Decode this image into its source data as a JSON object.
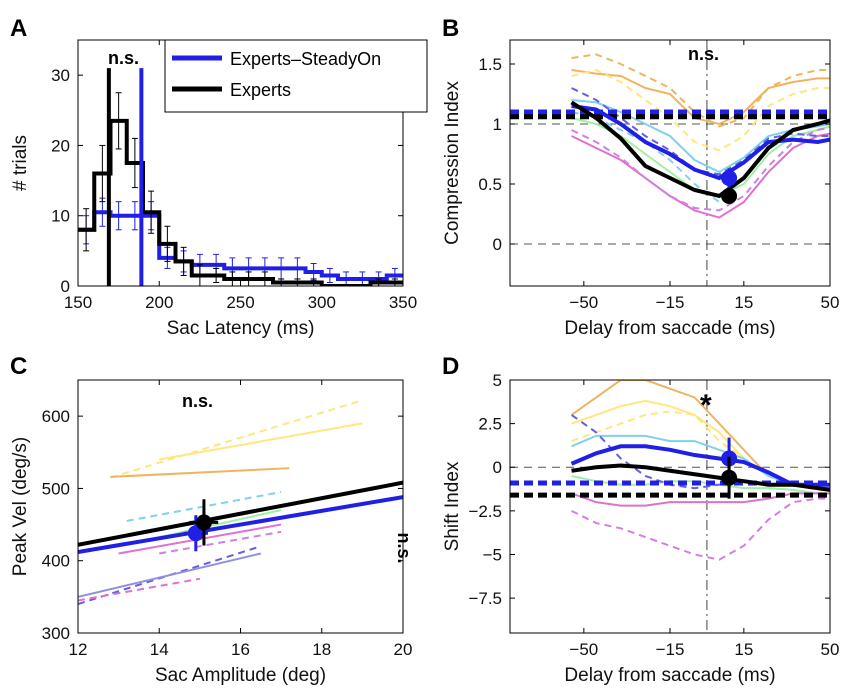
{
  "colors": {
    "blue": "#1f1fe6",
    "black": "#000000",
    "grey": "#666666"
  },
  "legend": {
    "steadyon": "Experts–SteadyOn",
    "experts": "Experts"
  },
  "panels": {
    "A": {
      "letter": "A",
      "annotation": "n.s."
    },
    "B": {
      "letter": "B",
      "annotation": "n.s."
    },
    "C": {
      "letter": "C",
      "annotation_top": "n.s.",
      "annotation_right": "n.s."
    },
    "D": {
      "letter": "D",
      "annotation": "*"
    }
  },
  "chart_data": [
    {
      "id": "A",
      "type": "line",
      "title": "",
      "xlabel": "Sac Latency (ms)",
      "ylabel": "# trials",
      "xlim": [
        150,
        350
      ],
      "ylim": [
        0,
        35
      ],
      "xticks": [
        150,
        200,
        250,
        300,
        350
      ],
      "yticks": [
        0,
        10,
        20,
        30
      ],
      "series": [
        {
          "name": "Experts–SteadyOn",
          "color": "#1f1fe6",
          "style": "step",
          "x": [
            150,
            160,
            170,
            180,
            190,
            200,
            210,
            220,
            230,
            240,
            250,
            260,
            270,
            280,
            290,
            300,
            310,
            320,
            330,
            340,
            350
          ],
          "y": [
            8,
            10.5,
            10,
            10,
            10,
            4,
            3.5,
            3,
            3,
            2.5,
            2.5,
            2.5,
            2.5,
            2.5,
            2,
            1.5,
            1,
            1,
            1,
            1.5,
            1.5
          ],
          "err": [
            2,
            2,
            2,
            2,
            2,
            1.5,
            1.5,
            1.5,
            1.5,
            1.5,
            1.5,
            1.5,
            1.5,
            1.5,
            1.2,
            1,
            1,
            1,
            1,
            1,
            1
          ]
        },
        {
          "name": "Experts",
          "color": "#000000",
          "style": "step",
          "x": [
            150,
            160,
            170,
            180,
            190,
            200,
            210,
            220,
            230,
            240,
            250,
            260,
            270,
            280,
            290,
            300,
            310,
            320,
            330,
            340,
            350
          ],
          "y": [
            8,
            16,
            23.5,
            17.5,
            10.5,
            6,
            3.5,
            1.5,
            1.5,
            1,
            1,
            1,
            0.5,
            0.5,
            0.5,
            0,
            0,
            0,
            0.5,
            0.5,
            0.5
          ],
          "err": [
            3,
            4,
            4,
            3.5,
            3,
            2.5,
            2,
            1.5,
            1,
            1,
            1,
            1,
            0.5,
            0.5,
            0.5,
            0,
            0,
            0,
            0.5,
            0.5,
            0.5
          ]
        }
      ],
      "vlines": [
        {
          "x": 169,
          "color": "#000000"
        },
        {
          "x": 189,
          "color": "#1f1fe6"
        }
      ]
    },
    {
      "id": "B",
      "type": "line",
      "xlabel": "Delay from saccade (ms)",
      "ylabel": "Compression Index",
      "xlim": [
        -80,
        50
      ],
      "ylim": [
        -0.35,
        1.7
      ],
      "xticks": [
        -50,
        -15,
        15,
        50
      ],
      "xtick_labels": [
        "−50",
        "−15",
        "15",
        "50"
      ],
      "yticks": [
        0,
        0.5,
        1,
        1.5
      ],
      "ytick_labels": [
        "0",
        "0.5",
        "1",
        "1.5"
      ],
      "hlines_grey": [
        0,
        1
      ],
      "vline_grey": 0,
      "hlines_dashed": [
        {
          "y": 1.1,
          "color": "#1f1fe6"
        },
        {
          "y": 1.06,
          "color": "#000000"
        }
      ],
      "x": [
        -55,
        -45,
        -35,
        -25,
        -15,
        -5,
        5,
        15,
        25,
        35,
        45,
        50
      ],
      "series": [
        {
          "name": "Experts–SteadyOn",
          "color": "#1f1fe6",
          "width": 4,
          "y": [
            1.15,
            1.12,
            1.0,
            0.85,
            0.75,
            0.62,
            0.55,
            0.68,
            0.85,
            0.87,
            0.85,
            0.87
          ]
        },
        {
          "name": "Experts",
          "color": "#000000",
          "width": 4,
          "y": [
            1.18,
            1.05,
            0.88,
            0.65,
            0.55,
            0.45,
            0.4,
            0.55,
            0.8,
            0.95,
            1.0,
            1.03
          ]
        }
      ],
      "thin_series": [
        {
          "color": "#f0b460",
          "dash": false,
          "y": [
            1.45,
            1.42,
            1.4,
            1.3,
            1.25,
            1.05,
            1.0,
            1.1,
            1.3,
            1.35,
            1.38,
            1.38
          ]
        },
        {
          "color": "#f0b460",
          "dash": true,
          "y": [
            1.55,
            1.58,
            1.5,
            1.4,
            1.3,
            1.1,
            0.98,
            1.05,
            1.3,
            1.4,
            1.45,
            1.45
          ]
        },
        {
          "color": "#ffe680",
          "dash": true,
          "y": [
            1.4,
            1.45,
            1.35,
            1.2,
            1.05,
            0.85,
            0.78,
            0.9,
            1.15,
            1.25,
            1.3,
            1.3
          ]
        },
        {
          "color": "#80d0f0",
          "dash": false,
          "y": [
            1.2,
            1.18,
            1.1,
            1.0,
            0.9,
            0.7,
            0.6,
            0.72,
            0.9,
            0.95,
            0.98,
            1.0
          ]
        },
        {
          "color": "#80d0f0",
          "dash": true,
          "y": [
            1.1,
            1.05,
            0.95,
            0.85,
            0.7,
            0.5,
            0.35,
            0.55,
            0.8,
            0.9,
            0.95,
            0.98
          ]
        },
        {
          "color": "#a0f0a0",
          "dash": false,
          "y": [
            1.05,
            1.0,
            0.9,
            0.75,
            0.6,
            0.45,
            0.4,
            0.5,
            0.75,
            0.9,
            0.95,
            0.98
          ]
        },
        {
          "color": "#e070d0",
          "dash": false,
          "y": [
            0.9,
            0.8,
            0.7,
            0.55,
            0.4,
            0.28,
            0.22,
            0.35,
            0.6,
            0.8,
            0.9,
            0.92
          ]
        },
        {
          "color": "#d080e0",
          "dash": true,
          "y": [
            0.95,
            0.85,
            0.72,
            0.55,
            0.4,
            0.3,
            0.28,
            0.4,
            0.65,
            0.85,
            0.95,
            0.97
          ]
        },
        {
          "color": "#6060e0",
          "dash": true,
          "y": [
            1.3,
            1.2,
            1.05,
            0.9,
            0.78,
            0.62,
            0.58,
            0.7,
            0.88,
            0.92,
            0.9,
            0.9
          ]
        }
      ],
      "points": [
        {
          "x": 9,
          "y": 0.55,
          "err": 0.08,
          "color": "#1f1fe6"
        },
        {
          "x": 9,
          "y": 0.4,
          "err": 0.05,
          "color": "#000000"
        }
      ]
    },
    {
      "id": "C",
      "type": "scatter",
      "xlabel": "Sac Amplitude (deg)",
      "ylabel": "Peak Vel (deg/s)",
      "xlim": [
        12,
        20
      ],
      "ylim": [
        300,
        650
      ],
      "xticks": [
        12,
        14,
        16,
        18,
        20
      ],
      "yticks": [
        300,
        400,
        500,
        600
      ],
      "fit_lines": [
        {
          "name": "Experts",
          "color": "#000000",
          "width": 4,
          "x": [
            12,
            20
          ],
          "y": [
            422,
            508
          ]
        },
        {
          "name": "Experts–SteadyOn",
          "color": "#1f1fe6",
          "width": 4,
          "x": [
            12,
            20
          ],
          "y": [
            412,
            488
          ]
        }
      ],
      "thin_lines": [
        {
          "color": "#ffe680",
          "dash": true,
          "x": [
            12.8,
            19.0
          ],
          "y": [
            515,
            622
          ]
        },
        {
          "color": "#ffe680",
          "dash": false,
          "x": [
            14.0,
            19.0
          ],
          "y": [
            540,
            590
          ]
        },
        {
          "color": "#f0b460",
          "dash": false,
          "x": [
            12.8,
            17.2
          ],
          "y": [
            516,
            528
          ]
        },
        {
          "color": "#80d0f0",
          "dash": true,
          "x": [
            13.2,
            17.0
          ],
          "y": [
            455,
            495
          ]
        },
        {
          "color": "#a0f0a0",
          "dash": false,
          "x": [
            13.0,
            17.0
          ],
          "y": [
            420,
            470
          ]
        },
        {
          "color": "#e070d0",
          "dash": false,
          "x": [
            13.0,
            17.0
          ],
          "y": [
            410,
            450
          ]
        },
        {
          "color": "#d080e0",
          "dash": true,
          "x": [
            14.0,
            17.0
          ],
          "y": [
            410,
            440
          ]
        },
        {
          "color": "#6060e0",
          "dash": true,
          "x": [
            12.0,
            16.5
          ],
          "y": [
            340,
            420
          ]
        },
        {
          "color": "#9090e0",
          "dash": false,
          "x": [
            12.0,
            16.5
          ],
          "y": [
            350,
            410
          ]
        },
        {
          "color": "#e070d0",
          "dash": true,
          "x": [
            12.0,
            15.0
          ],
          "y": [
            345,
            375
          ]
        }
      ],
      "points": [
        {
          "x": 14.9,
          "y": 438,
          "xerr": 0.3,
          "yerr": 25,
          "color": "#1f1fe6"
        },
        {
          "x": 15.1,
          "y": 453,
          "xerr": 0.35,
          "yerr": 32,
          "color": "#000000"
        }
      ]
    },
    {
      "id": "D",
      "type": "line",
      "xlabel": "Delay from saccade (ms)",
      "ylabel": "Shift Index",
      "xlim": [
        -80,
        50
      ],
      "ylim": [
        -9.5,
        5
      ],
      "xticks": [
        -50,
        -15,
        15,
        50
      ],
      "xtick_labels": [
        "−50",
        "−15",
        "15",
        "50"
      ],
      "yticks": [
        -7.5,
        -5,
        -2.5,
        0,
        2.5,
        5
      ],
      "ytick_labels": [
        "−7.5",
        "−5",
        "−2.5",
        "0",
        "2.5",
        "5"
      ],
      "hlines_grey": [
        0
      ],
      "vline_grey": 0,
      "hlines_dashed": [
        {
          "y": -0.9,
          "color": "#1f1fe6"
        },
        {
          "y": -1.6,
          "color": "#000000"
        }
      ],
      "x": [
        -55,
        -45,
        -35,
        -25,
        -15,
        -5,
        5,
        15,
        25,
        35,
        45,
        50
      ],
      "series": [
        {
          "name": "Experts–SteadyOn",
          "color": "#1f1fe6",
          "width": 4,
          "y": [
            0.2,
            0.8,
            1.2,
            1.2,
            1.0,
            0.7,
            0.5,
            0.3,
            -0.3,
            -1.0,
            -1.0,
            -1.0
          ]
        },
        {
          "name": "Experts",
          "color": "#000000",
          "width": 4,
          "y": [
            -0.2,
            0.0,
            0.1,
            0.0,
            -0.2,
            -0.4,
            -0.6,
            -0.8,
            -1.0,
            -1.0,
            -1.2,
            -1.3
          ]
        }
      ],
      "thin_series": [
        {
          "color": "#f0b460",
          "dash": false,
          "y": [
            3.0,
            4.0,
            5.0,
            5.0,
            4.5,
            4.0,
            2.5,
            1.0,
            -0.5,
            -1.0,
            -1.2,
            -1.2
          ]
        },
        {
          "color": "#ffe680",
          "dash": false,
          "y": [
            2.5,
            3.0,
            3.5,
            3.8,
            3.5,
            3.0,
            2.0,
            0.5,
            -0.5,
            -1.0,
            -1.2,
            -1.2
          ]
        },
        {
          "color": "#ffe680",
          "dash": true,
          "y": [
            1.5,
            2.0,
            2.5,
            3.0,
            3.2,
            3.0,
            1.5,
            0.5,
            -0.5,
            -1.0,
            -1.3,
            -1.3
          ]
        },
        {
          "color": "#80d0f0",
          "dash": false,
          "y": [
            1.2,
            1.8,
            1.8,
            1.8,
            1.5,
            1.5,
            1.0,
            0.5,
            -0.5,
            -1.0,
            -1.2,
            -1.2
          ]
        },
        {
          "color": "#a0f0a0",
          "dash": false,
          "y": [
            -0.5,
            -0.8,
            -1.0,
            -1.0,
            -0.8,
            -0.8,
            -1.0,
            -1.2,
            -1.2,
            -1.3,
            -1.5,
            -1.5
          ]
        },
        {
          "color": "#e070d0",
          "dash": false,
          "y": [
            -1.5,
            -2.0,
            -2.2,
            -2.2,
            -2.0,
            -2.0,
            -2.0,
            -2.0,
            -1.8,
            -1.5,
            -1.5,
            -1.5
          ]
        },
        {
          "color": "#d080e0",
          "dash": true,
          "y": [
            -2.5,
            -3.2,
            -3.5,
            -4.0,
            -4.5,
            -5.0,
            -5.3,
            -4.5,
            -3.0,
            -2.0,
            -1.8,
            -1.8
          ]
        },
        {
          "color": "#6060e0",
          "dash": true,
          "y": [
            3.0,
            2.0,
            0.5,
            -0.5,
            -1.0,
            -1.2,
            -1.0,
            -0.8,
            -1.0,
            -1.0,
            -1.2,
            -1.2
          ]
        }
      ],
      "points": [
        {
          "x": 9,
          "y": 0.5,
          "err": 1.2,
          "color": "#1f1fe6"
        },
        {
          "x": 9,
          "y": -0.6,
          "err": 1.2,
          "color": "#000000"
        }
      ]
    }
  ]
}
